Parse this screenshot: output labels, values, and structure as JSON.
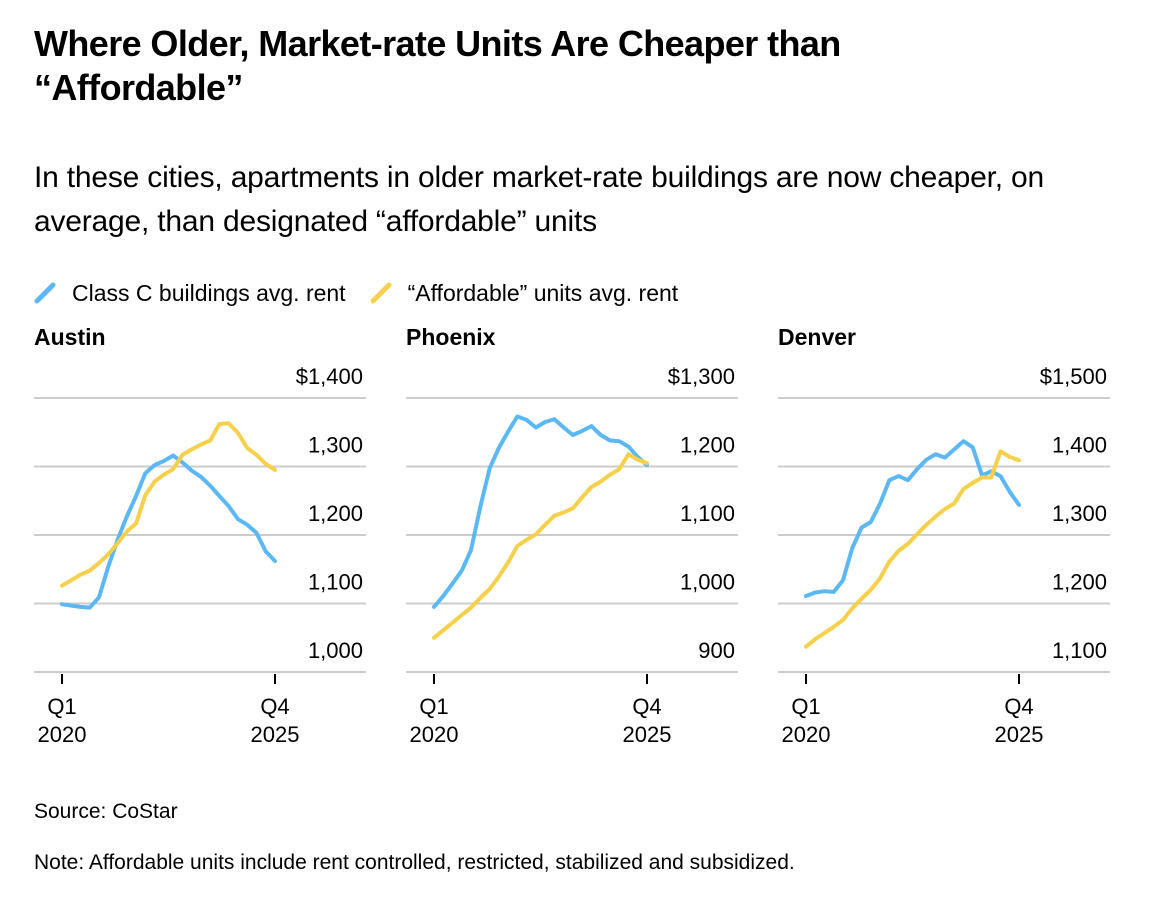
{
  "title": "Where Older, Market-rate Units Are Cheaper than “Affordable”",
  "subtitle": "In these cities, apartments in older market-rate buildings are now cheaper, on average, than designated “affordable” units",
  "legend": [
    {
      "label": "Class C buildings avg. rent",
      "color": "#5bb8f5",
      "icon": "line-swatch-icon"
    },
    {
      "label": "“Affordable” units avg. rent",
      "color": "#f7d04b",
      "icon": "line-swatch-icon"
    }
  ],
  "source": "Source: CoStar",
  "note": "Note: Affordable units include rent controlled, restricted, stabilized and subsidized.",
  "chart_data": [
    {
      "type": "line",
      "title": "Austin",
      "x_start": "Q1 2020",
      "x_end": "Q4 2025",
      "xtick_labels": [
        [
          "Q1",
          "2020"
        ],
        [
          "Q4",
          "2025"
        ]
      ],
      "ylim": [
        1000,
        1400
      ],
      "yticks": [
        1000,
        1100,
        1200,
        1300,
        1400
      ],
      "ytick_labels": [
        "1,000",
        "1,100",
        "1,200",
        "1,300",
        "$1,400"
      ],
      "grid": true,
      "series": [
        {
          "name": "Class C buildings avg. rent",
          "color": "#5bb8f5",
          "values": [
            1099,
            1097,
            1095,
            1094,
            1109,
            1154,
            1193,
            1227,
            1257,
            1290,
            1302,
            1308,
            1316,
            1306,
            1294,
            1285,
            1272,
            1257,
            1242,
            1223,
            1215,
            1203,
            1176,
            1162
          ]
        },
        {
          "name": "“Affordable” units avg. rent",
          "color": "#f7d04b",
          "values": [
            1126,
            1134,
            1142,
            1148,
            1159,
            1172,
            1188,
            1205,
            1217,
            1258,
            1278,
            1288,
            1296,
            1317,
            1325,
            1332,
            1338,
            1362,
            1363,
            1349,
            1327,
            1317,
            1304,
            1295
          ]
        }
      ]
    },
    {
      "type": "line",
      "title": "Phoenix",
      "x_start": "Q1 2020",
      "x_end": "Q4 2025",
      "xtick_labels": [
        [
          "Q1",
          "2020"
        ],
        [
          "Q4",
          "2025"
        ]
      ],
      "ylim": [
        900,
        1300
      ],
      "yticks": [
        900,
        1000,
        1100,
        1200,
        1300
      ],
      "ytick_labels": [
        "900",
        "1,000",
        "1,100",
        "1,200",
        "$1,300"
      ],
      "grid": true,
      "series": [
        {
          "name": "Class C buildings avg. rent",
          "color": "#5bb8f5",
          "values": [
            995,
            1011,
            1029,
            1048,
            1078,
            1141,
            1197,
            1227,
            1251,
            1273,
            1268,
            1257,
            1265,
            1269,
            1257,
            1246,
            1252,
            1259,
            1246,
            1238,
            1237,
            1229,
            1214,
            1202
          ]
        },
        {
          "name": "“Affordable” units avg. rent",
          "color": "#f7d04b",
          "values": [
            950,
            961,
            972,
            983,
            994,
            1008,
            1021,
            1039,
            1060,
            1084,
            1093,
            1101,
            1115,
            1128,
            1133,
            1139,
            1155,
            1170,
            1178,
            1188,
            1196,
            1218,
            1210,
            1205
          ]
        }
      ]
    },
    {
      "type": "line",
      "title": "Denver",
      "x_start": "Q1 2020",
      "x_end": "Q4 2025",
      "xtick_labels": [
        [
          "Q1",
          "2020"
        ],
        [
          "Q4",
          "2025"
        ]
      ],
      "ylim": [
        1100,
        1500
      ],
      "yticks": [
        1100,
        1200,
        1300,
        1400,
        1500
      ],
      "ytick_labels": [
        "1,100",
        "1,200",
        "1,300",
        "1,400",
        "$1,500"
      ],
      "grid": true,
      "series": [
        {
          "name": "Class C buildings avg. rent",
          "color": "#5bb8f5",
          "values": [
            1211,
            1216,
            1218,
            1217,
            1234,
            1281,
            1311,
            1319,
            1346,
            1380,
            1386,
            1380,
            1396,
            1410,
            1418,
            1413,
            1425,
            1437,
            1428,
            1387,
            1393,
            1386,
            1363,
            1344
          ]
        },
        {
          "name": "“Affordable” units avg. rent",
          "color": "#f7d04b",
          "values": [
            1137,
            1148,
            1157,
            1166,
            1176,
            1193,
            1207,
            1220,
            1237,
            1261,
            1277,
            1287,
            1301,
            1315,
            1327,
            1338,
            1346,
            1367,
            1376,
            1384,
            1384,
            1422,
            1414,
            1409
          ]
        }
      ]
    }
  ]
}
